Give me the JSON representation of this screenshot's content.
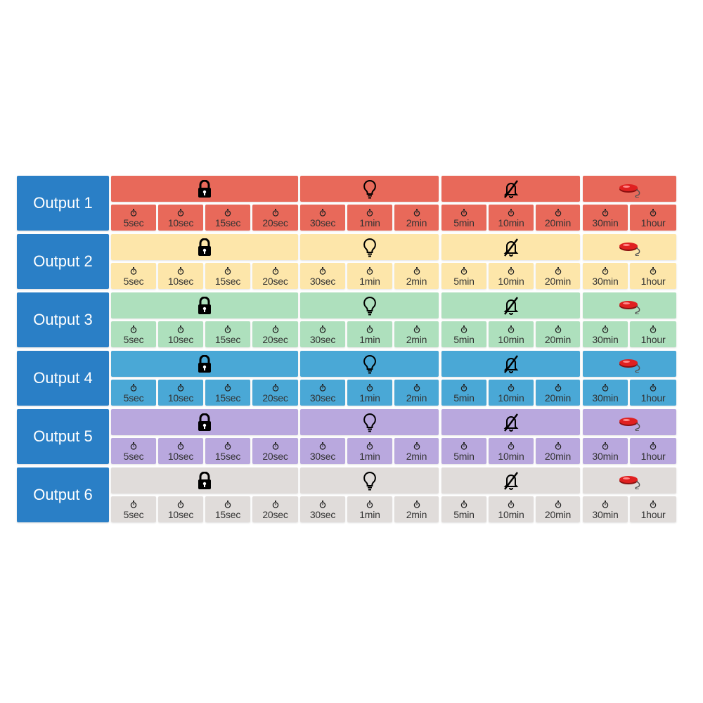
{
  "outputs": [
    {
      "label": "Output 1",
      "header_color": "#e8695a",
      "cell_color": "#e8695a"
    },
    {
      "label": "Output 2",
      "header_color": "#fde6aa",
      "cell_color": "#fde6aa"
    },
    {
      "label": "Output 3",
      "header_color": "#aee0bd",
      "cell_color": "#aee0bd"
    },
    {
      "label": "Output 4",
      "header_color": "#4aa8d6",
      "cell_color": "#4aa8d6"
    },
    {
      "label": "Output 5",
      "header_color": "#b9a8de",
      "cell_color": "#b9a8de"
    },
    {
      "label": "Output 6",
      "header_color": "#e0dcda",
      "cell_color": "#e0dcda"
    }
  ],
  "label_color": "#2a7fc6",
  "groups": [
    {
      "icon": "lock-icon",
      "durations": [
        "5sec",
        "10sec",
        "15sec",
        "20sec"
      ]
    },
    {
      "icon": "lightbulb-icon",
      "durations": [
        "30sec",
        "1min",
        "2min"
      ]
    },
    {
      "icon": "bell-off-icon",
      "durations": [
        "5min",
        "10min",
        "20min"
      ]
    },
    {
      "icon": "red-button-icon",
      "durations": [
        "30min",
        "1hour"
      ]
    }
  ]
}
